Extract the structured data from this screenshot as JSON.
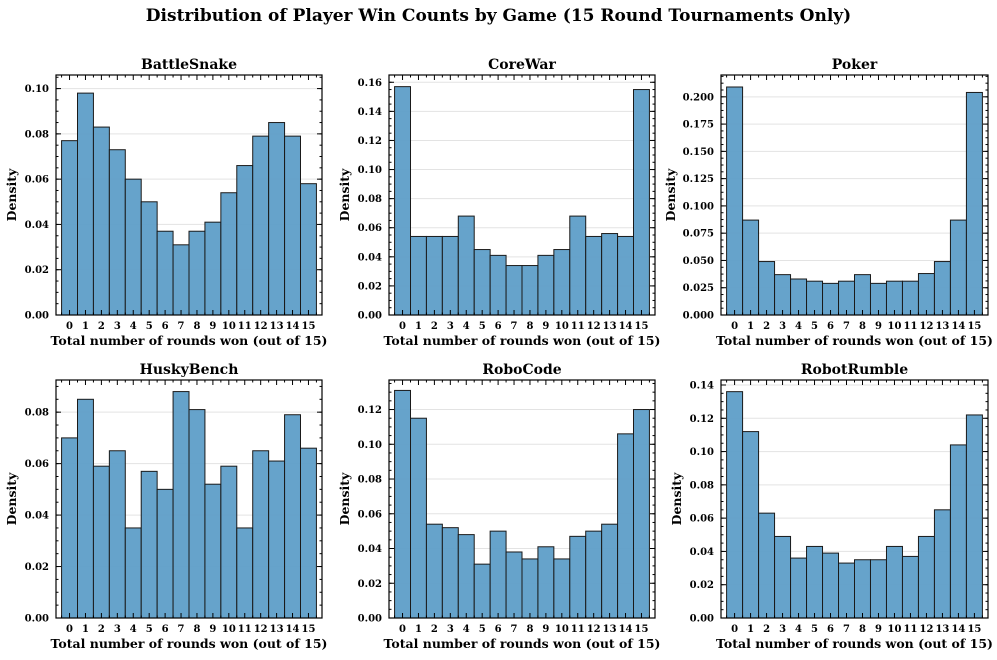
{
  "figure": {
    "title": "Distribution of Player Win Counts by Game (15 Round Tournaments Only)"
  },
  "chart_data": [
    {
      "type": "bar",
      "title": "BattleSnake",
      "xlabel": "Total number of rounds won (out of 15)",
      "ylabel": "Density",
      "categories": [
        "0",
        "1",
        "2",
        "3",
        "4",
        "5",
        "6",
        "7",
        "8",
        "9",
        "10",
        "11",
        "12",
        "13",
        "14",
        "15"
      ],
      "values": [
        0.077,
        0.098,
        0.083,
        0.073,
        0.06,
        0.05,
        0.037,
        0.031,
        0.037,
        0.041,
        0.054,
        0.066,
        0.079,
        0.085,
        0.079,
        0.058
      ],
      "ylim": [
        0,
        0.106
      ],
      "yticks": [
        0.0,
        0.02,
        0.04,
        0.06,
        0.08,
        0.1
      ],
      "ytick_labels": [
        "0.00",
        "0.02",
        "0.04",
        "0.06",
        "0.08",
        "0.10"
      ],
      "grid": true
    },
    {
      "type": "bar",
      "title": "CoreWar",
      "xlabel": "Total number of rounds won (out of 15)",
      "ylabel": "Density",
      "categories": [
        "0",
        "1",
        "2",
        "3",
        "4",
        "5",
        "6",
        "7",
        "8",
        "9",
        "10",
        "11",
        "12",
        "13",
        "14",
        "15"
      ],
      "values": [
        0.157,
        0.054,
        0.054,
        0.054,
        0.068,
        0.045,
        0.041,
        0.034,
        0.034,
        0.041,
        0.045,
        0.068,
        0.054,
        0.056,
        0.054,
        0.155
      ],
      "ylim": [
        0,
        0.165
      ],
      "yticks": [
        0.0,
        0.02,
        0.04,
        0.06,
        0.08,
        0.1,
        0.12,
        0.14,
        0.16
      ],
      "ytick_labels": [
        "0.00",
        "0.02",
        "0.04",
        "0.06",
        "0.08",
        "0.10",
        "0.12",
        "0.14",
        "0.16"
      ],
      "grid": true
    },
    {
      "type": "bar",
      "title": "Poker",
      "xlabel": "Total number of rounds won (out of 15)",
      "ylabel": "Density",
      "categories": [
        "0",
        "1",
        "2",
        "3",
        "4",
        "5",
        "6",
        "7",
        "8",
        "9",
        "10",
        "11",
        "12",
        "13",
        "14",
        "15"
      ],
      "values": [
        0.209,
        0.087,
        0.049,
        0.037,
        0.033,
        0.031,
        0.029,
        0.031,
        0.037,
        0.029,
        0.031,
        0.031,
        0.038,
        0.049,
        0.087,
        0.204
      ],
      "ylim": [
        0,
        0.22
      ],
      "yticks": [
        0.0,
        0.025,
        0.05,
        0.075,
        0.1,
        0.125,
        0.15,
        0.175,
        0.2
      ],
      "ytick_labels": [
        "0.000",
        "0.025",
        "0.050",
        "0.075",
        "0.100",
        "0.125",
        "0.150",
        "0.175",
        "0.200"
      ],
      "grid": true
    },
    {
      "type": "bar",
      "title": "HuskyBench",
      "xlabel": "Total number of rounds won (out of 15)",
      "ylabel": "Density",
      "categories": [
        "0",
        "1",
        "2",
        "3",
        "4",
        "5",
        "6",
        "7",
        "8",
        "9",
        "10",
        "11",
        "12",
        "13",
        "14",
        "15"
      ],
      "values": [
        0.07,
        0.085,
        0.059,
        0.065,
        0.035,
        0.057,
        0.05,
        0.088,
        0.081,
        0.052,
        0.059,
        0.035,
        0.065,
        0.061,
        0.079,
        0.066
      ],
      "ylim": [
        0,
        0.0925
      ],
      "yticks": [
        0.0,
        0.02,
        0.04,
        0.06,
        0.08
      ],
      "ytick_labels": [
        "0.00",
        "0.02",
        "0.04",
        "0.06",
        "0.08"
      ],
      "grid": true
    },
    {
      "type": "bar",
      "title": "RoboCode",
      "xlabel": "Total number of rounds won (out of 15)",
      "ylabel": "Density",
      "categories": [
        "0",
        "1",
        "2",
        "3",
        "4",
        "5",
        "6",
        "7",
        "8",
        "9",
        "10",
        "11",
        "12",
        "13",
        "14",
        "15"
      ],
      "values": [
        0.131,
        0.115,
        0.054,
        0.052,
        0.048,
        0.031,
        0.05,
        0.038,
        0.034,
        0.041,
        0.034,
        0.047,
        0.05,
        0.054,
        0.106,
        0.12
      ],
      "ylim": [
        0,
        0.137
      ],
      "yticks": [
        0.0,
        0.02,
        0.04,
        0.06,
        0.08,
        0.1,
        0.12
      ],
      "ytick_labels": [
        "0.00",
        "0.02",
        "0.04",
        "0.06",
        "0.08",
        "0.10",
        "0.12"
      ],
      "grid": true
    },
    {
      "type": "bar",
      "title": "RobotRumble",
      "xlabel": "Total number of rounds won (out of 15)",
      "ylabel": "Density",
      "categories": [
        "0",
        "1",
        "2",
        "3",
        "4",
        "5",
        "6",
        "7",
        "8",
        "9",
        "10",
        "11",
        "12",
        "13",
        "14",
        "15"
      ],
      "values": [
        0.136,
        0.112,
        0.063,
        0.049,
        0.036,
        0.043,
        0.039,
        0.033,
        0.035,
        0.035,
        0.043,
        0.037,
        0.049,
        0.065,
        0.104,
        0.122
      ],
      "ylim": [
        0,
        0.143
      ],
      "yticks": [
        0.0,
        0.02,
        0.04,
        0.06,
        0.08,
        0.1,
        0.12,
        0.14
      ],
      "ytick_labels": [
        "0.00",
        "0.02",
        "0.04",
        "0.06",
        "0.08",
        "0.10",
        "0.12",
        "0.14"
      ],
      "grid": true
    }
  ]
}
